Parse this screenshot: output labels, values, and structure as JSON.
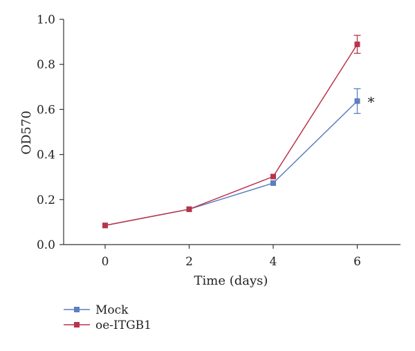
{
  "chart_data": {
    "type": "line",
    "xlabel": "Time (days)",
    "ylabel": "OD570",
    "xlim": [
      -1,
      7
    ],
    "ylim": [
      0,
      1.0
    ],
    "x_ticks": [
      "0",
      "2",
      "4",
      "6"
    ],
    "y_ticks": [
      "0.0",
      "0.2",
      "0.4",
      "0.6",
      "0.8",
      "1.0"
    ],
    "x": [
      0,
      2,
      4,
      6
    ],
    "series": [
      {
        "name": "Mock",
        "color": "#5b7fbf",
        "values": [
          0.085,
          0.157,
          0.273,
          0.637
        ],
        "error": [
          null,
          null,
          null,
          0.055
        ]
      },
      {
        "name": "oe-ITGB1",
        "color": "#b8344b",
        "values": [
          0.085,
          0.157,
          0.302,
          0.889
        ],
        "error": [
          null,
          null,
          null,
          0.04
        ]
      }
    ],
    "annotations": [
      {
        "text": "*",
        "x": 6,
        "y": 0.637,
        "series": "Mock"
      }
    ],
    "legend_position": "bottom-left",
    "grid": false
  }
}
